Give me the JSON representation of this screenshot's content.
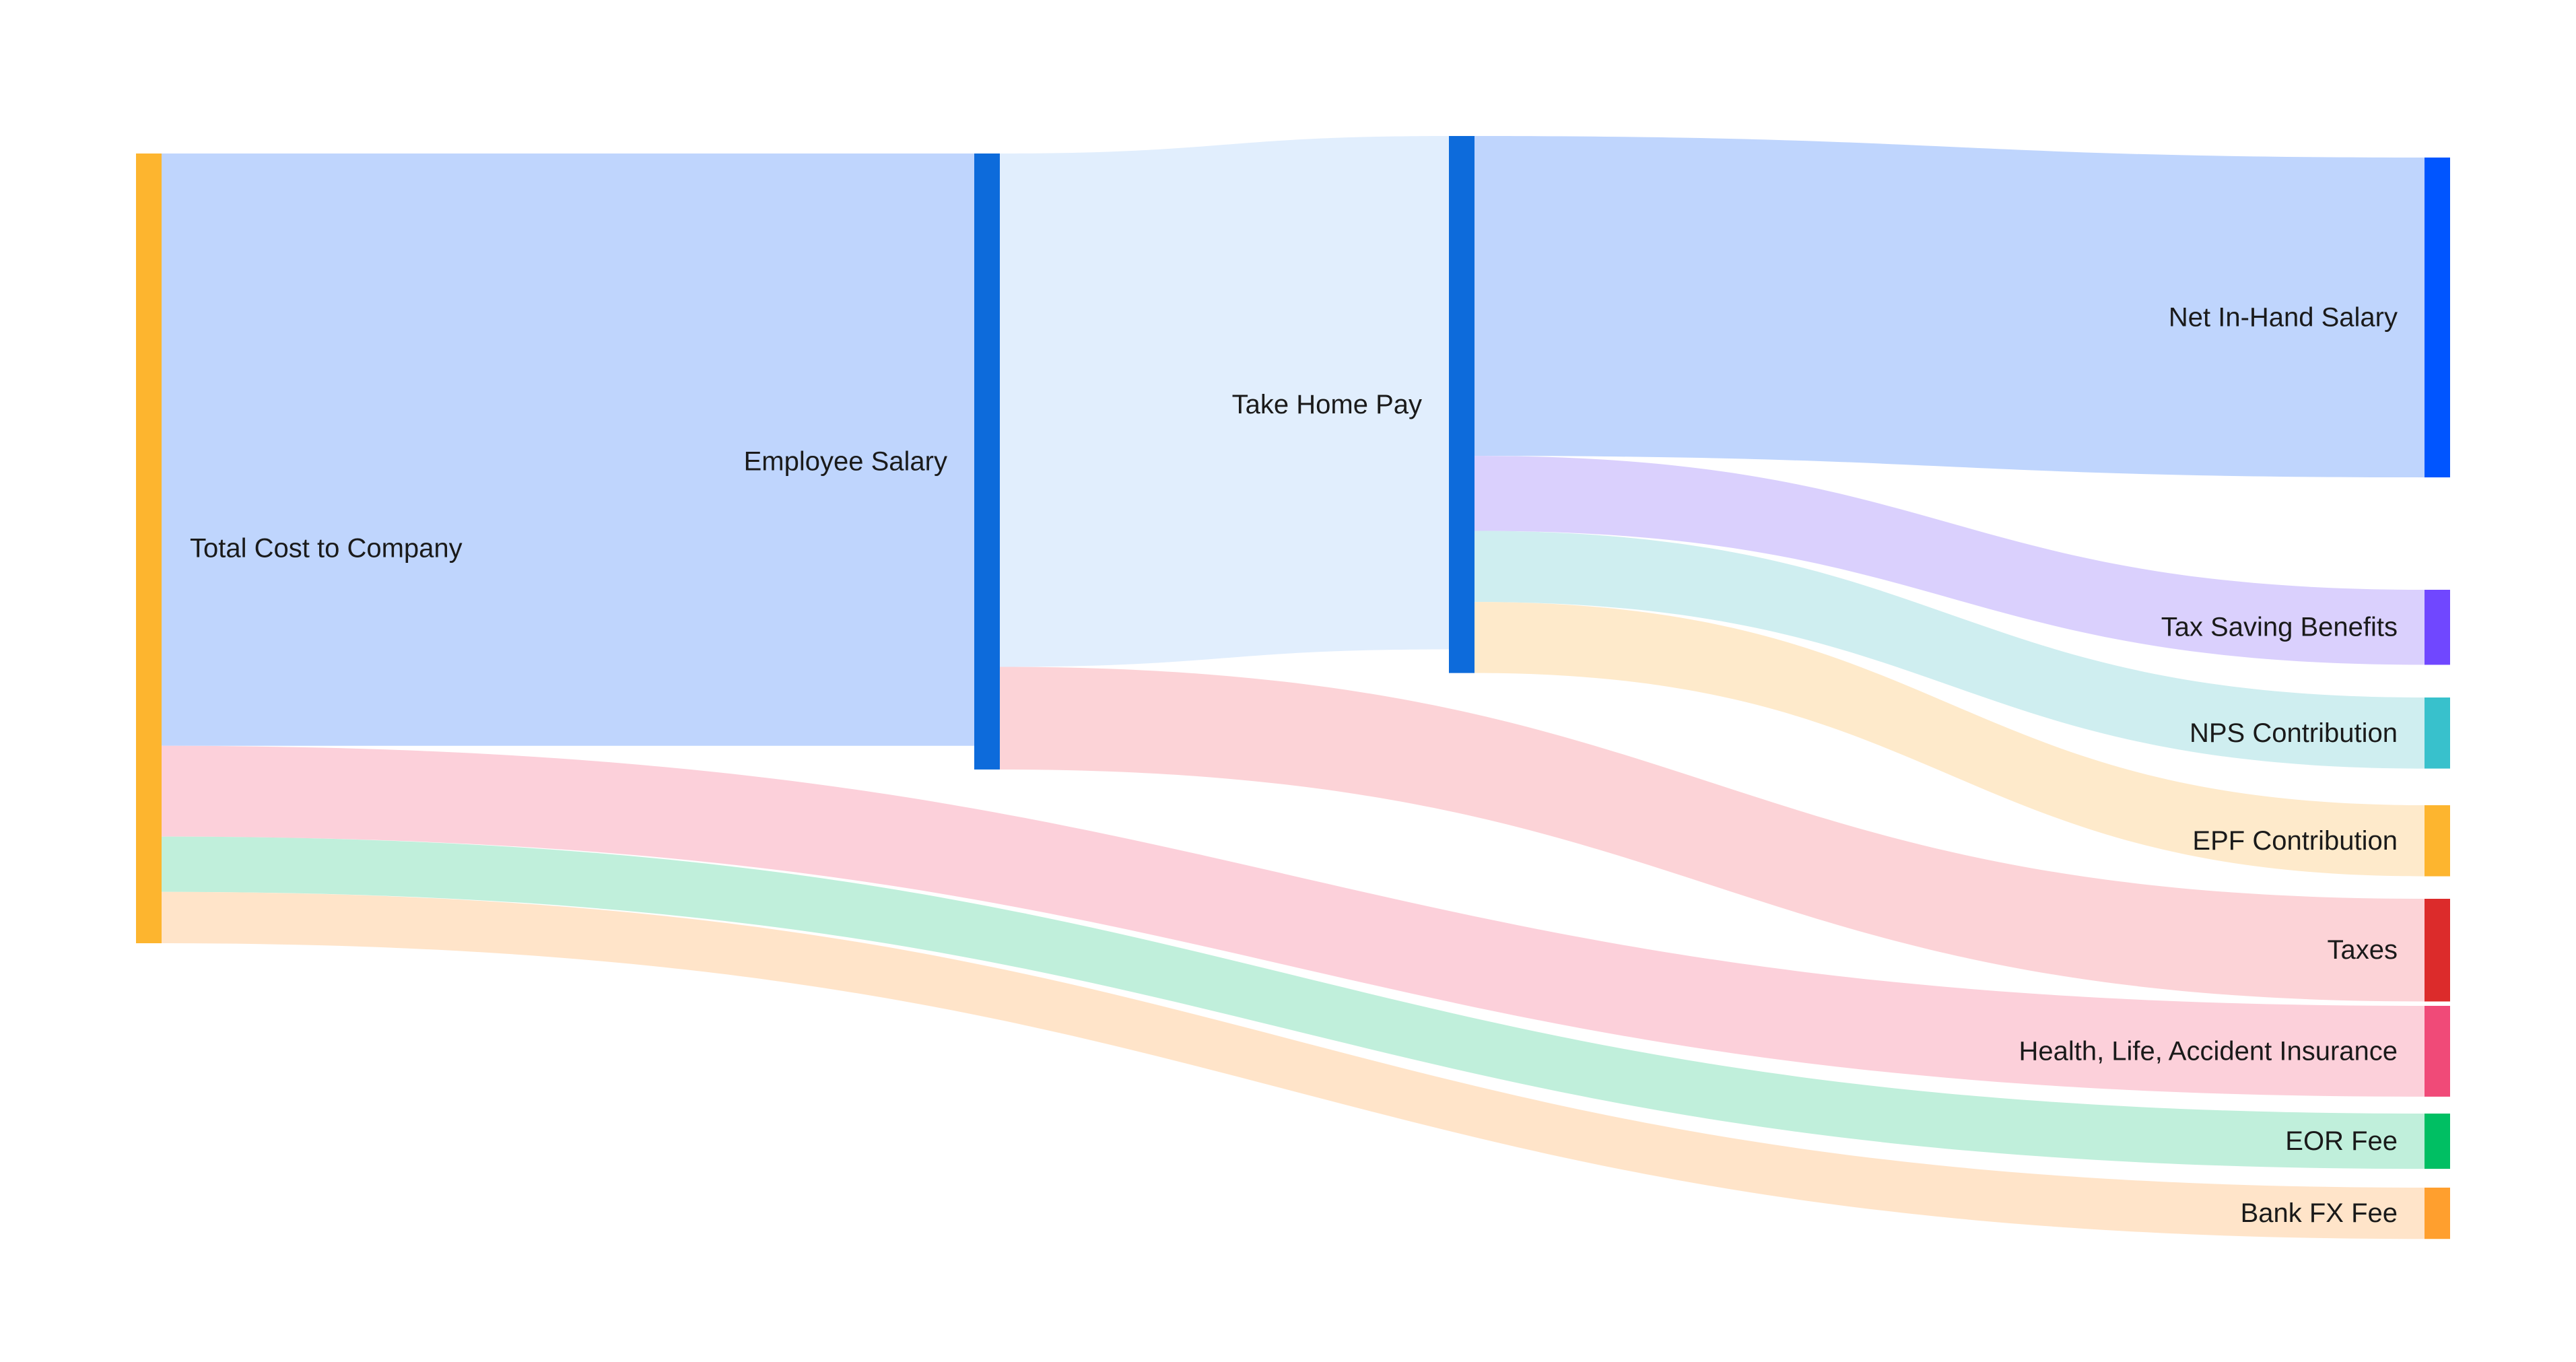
{
  "chart_data": {
    "type": "sankey",
    "title": "",
    "nodes": [
      {
        "id": "tcc",
        "name": "Total Cost to Company",
        "color": "#FDB52F"
      },
      {
        "id": "salary",
        "name": "Employee Salary",
        "color": "#0D6BDB"
      },
      {
        "id": "takehome",
        "name": "Take Home Pay",
        "color": "#0D6BDB"
      },
      {
        "id": "net",
        "name": "Net In-Hand Salary",
        "color": "#0055FF"
      },
      {
        "id": "taxsaving",
        "name": "Tax Saving Benefits",
        "color": "#7047FF"
      },
      {
        "id": "nps",
        "name": "NPS Contribution",
        "color": "#38C1CC"
      },
      {
        "id": "epf",
        "name": "EPF Contribution",
        "color": "#FDB52F"
      },
      {
        "id": "taxes",
        "name": "Taxes",
        "color": "#DC2B2B"
      },
      {
        "id": "insurance",
        "name": "Health, Life, Accident Insurance",
        "color": "#F04A78"
      },
      {
        "id": "eor",
        "name": "EOR Fee",
        "color": "#00BF63"
      },
      {
        "id": "bankfx",
        "name": "Bank FX Fee",
        "color": "#FF9F2E"
      }
    ],
    "links": [
      {
        "source": "tcc",
        "target": "salary",
        "value": 75,
        "color": "#BFD5FD"
      },
      {
        "source": "tcc",
        "target": "insurance",
        "value": 11.5,
        "color": "#FCD0DA"
      },
      {
        "source": "tcc",
        "target": "eor",
        "value": 7,
        "color": "#C0EFDB"
      },
      {
        "source": "tcc",
        "target": "bankfx",
        "value": 6.5,
        "color": "#FFE4C9"
      },
      {
        "source": "salary",
        "target": "takehome",
        "value": 65,
        "color": "#E1EEFD"
      },
      {
        "source": "salary",
        "target": "taxes",
        "value": 13,
        "color": "#FCD3D7"
      },
      {
        "source": "takehome",
        "target": "net",
        "value": 40.5,
        "color": "#BFD5FD"
      },
      {
        "source": "takehome",
        "target": "taxsaving",
        "value": 9.5,
        "color": "#DAD0FD"
      },
      {
        "source": "takehome",
        "target": "nps",
        "value": 9,
        "color": "#CFEEF0"
      },
      {
        "source": "takehome",
        "target": "epf",
        "value": 9,
        "color": "#FEEACB"
      }
    ]
  }
}
